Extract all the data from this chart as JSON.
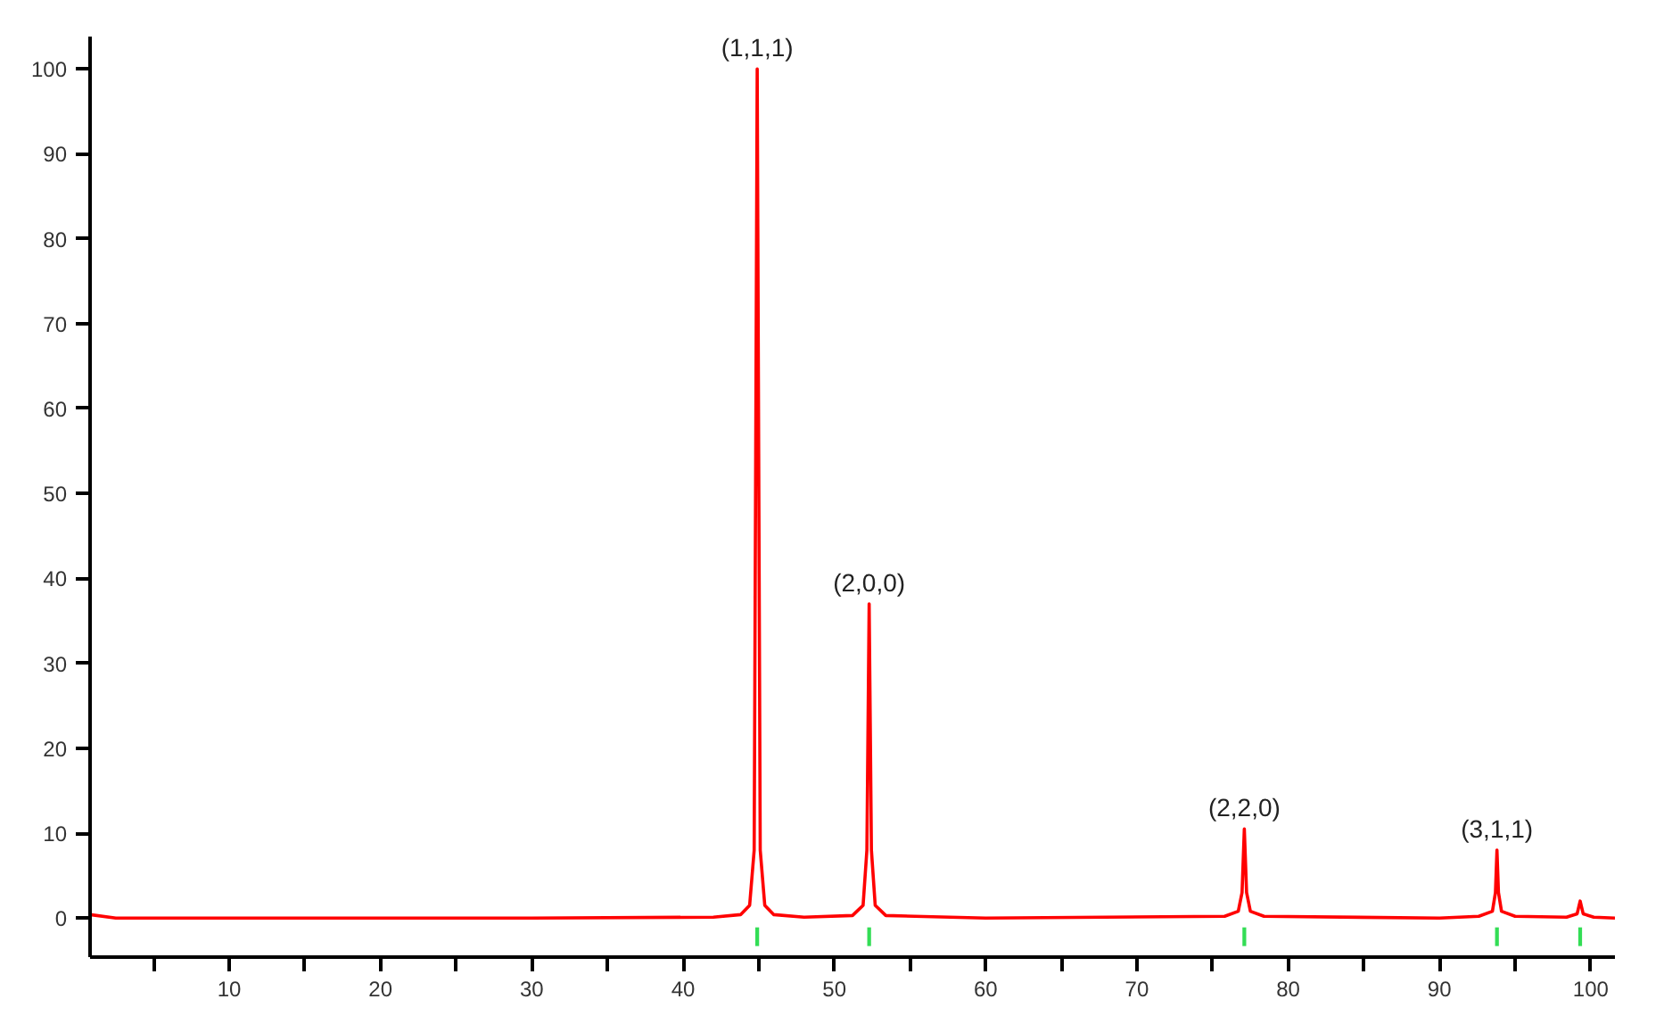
{
  "chart_data": {
    "type": "line",
    "series": [
      {
        "color": "#ff0000",
        "x": [
          0.8,
          2.5,
          10,
          30,
          42,
          43.8,
          44.4,
          44.7,
          44.9,
          45.1,
          45.4,
          46,
          48,
          51.2,
          51.9,
          52.15,
          52.3,
          52.45,
          52.7,
          53.4,
          60,
          75.8,
          76.7,
          76.95,
          77.1,
          77.25,
          77.5,
          78.4,
          90,
          92.6,
          93.5,
          93.7,
          93.8,
          93.9,
          94.1,
          95,
          98.4,
          99.1,
          99.3,
          99.5,
          100.2,
          101.6
        ],
        "values": [
          0.4,
          0,
          0,
          0,
          0.1,
          0.4,
          1.5,
          8,
          100,
          8,
          1.5,
          0.4,
          0.1,
          0.3,
          1.5,
          8,
          37,
          8,
          1.5,
          0.3,
          0,
          0.2,
          0.8,
          3,
          10.5,
          3,
          0.8,
          0.2,
          0,
          0.2,
          0.8,
          3,
          8,
          3,
          0.8,
          0.2,
          0.1,
          0.5,
          2,
          0.5,
          0.1,
          0
        ]
      },
      {
        "type": "bar",
        "color": "#33dd55",
        "x": [
          44.9,
          52.3,
          77.1,
          93.8,
          99.3
        ],
        "base": [
          -3.3,
          -3.3,
          -3.3,
          -3.3,
          -3.3
        ],
        "values": [
          2.2,
          2.2,
          2.2,
          2.2,
          2.2
        ]
      }
    ],
    "xlim": [
      0.8,
      101.6
    ],
    "ylim": [
      -4.6,
      103.8
    ],
    "xticks": [
      {
        "value": 5,
        "label": null
      },
      10,
      {
        "value": 15,
        "label": null
      },
      20,
      {
        "value": 25,
        "label": null
      },
      30,
      {
        "value": 35,
        "label": null
      },
      40,
      {
        "value": 45,
        "label": null
      },
      50,
      {
        "value": 55,
        "label": null
      },
      60,
      {
        "value": 65,
        "label": null
      },
      70,
      {
        "value": 75,
        "label": null
      },
      80,
      {
        "value": 85,
        "label": null
      },
      90,
      {
        "value": 95,
        "label": null
      },
      100
    ],
    "yticks": [
      0,
      10,
      20,
      30,
      40,
      50,
      60,
      70,
      80,
      90,
      100
    ],
    "annotations": [
      {
        "text": "(1,1,1)",
        "x": 44.9,
        "y": 100
      },
      {
        "text": "(2,0,0)",
        "x": 52.3,
        "y": 37
      },
      {
        "text": "(2,2,0)",
        "x": 77.1,
        "y": 10.5
      },
      {
        "text": "(3,1,1)",
        "x": 93.8,
        "y": 8
      }
    ]
  }
}
